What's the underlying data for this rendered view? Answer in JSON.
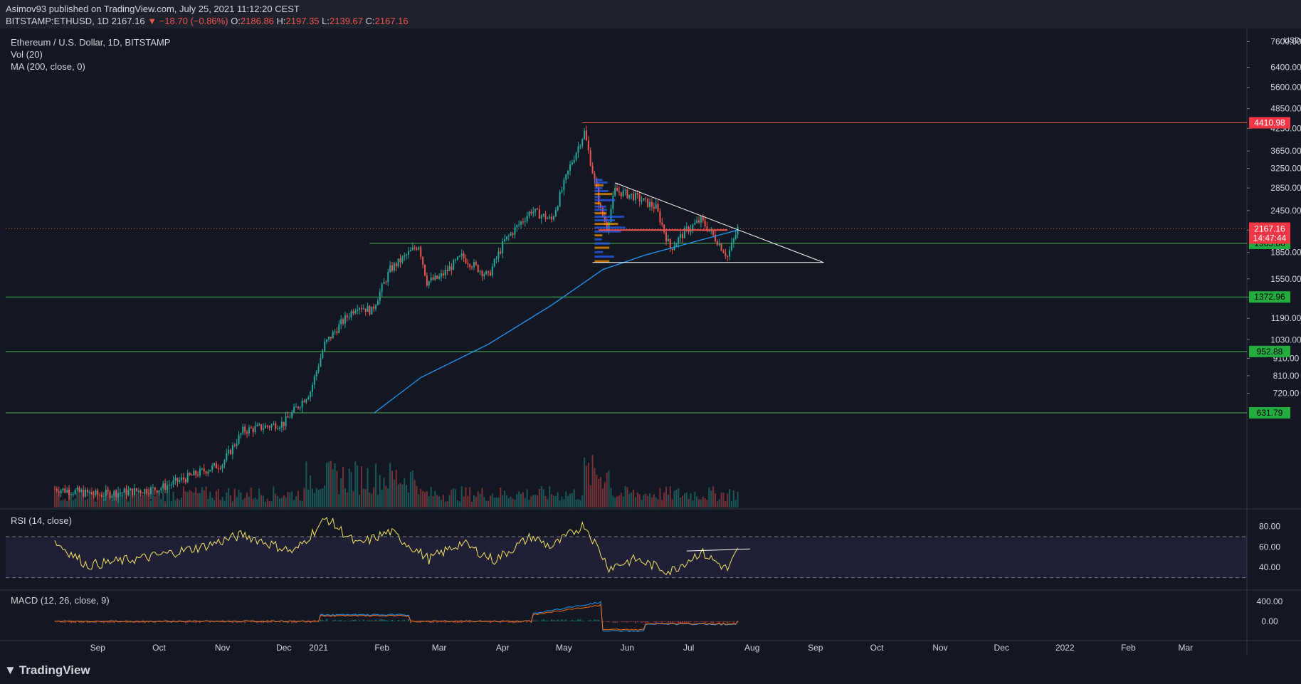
{
  "header": {
    "publisher_line": "Asimov93 published on TradingView.com, July 25, 2021 11:12:20 CEST",
    "symbol": "BITSTAMP:ETHUSD, 1D",
    "last": "2167.16",
    "change_arrow": "▼",
    "change": "−18.70 (−0.86%)",
    "o_label": "O:",
    "o": "2186.86",
    "h_label": "H:",
    "h": "2197.35",
    "l_label": "L:",
    "l": "2139.67",
    "c_label": "C:",
    "c": "2167.16"
  },
  "legend": {
    "main": "Ethereum / U.S. Dollar, 1D, BITSTAMP",
    "vol": "Vol (20)",
    "ma": "MA (200, close, 0)",
    "rsi": "RSI (14, close)",
    "macd": "MACD (12, 26, close, 9)"
  },
  "brand": "TradingView",
  "colors": {
    "background": "#131722",
    "up": "#26a69a",
    "down": "#ef5350",
    "ma": "#2196f3",
    "rsi": "#f5e663",
    "level_green": "#4caf50",
    "level_red": "#ef5350",
    "trendline": "#ffffff"
  },
  "price_tags": {
    "currency": "USD",
    "last": "2167.16",
    "countdown": "14:47:44",
    "levels": [
      "4410.98",
      "1965.86",
      "1372.96",
      "952.88",
      "631.79"
    ]
  },
  "chart_data": [
    {
      "type": "candlestick",
      "title": "Ethereum / U.S. Dollar, 1D, BITSTAMP",
      "y_scale": "log",
      "y_ticks": [
        720,
        810,
        910,
        1030,
        1190,
        1372,
        1550,
        1850,
        2150,
        2450,
        2850,
        3250,
        3650,
        4250,
        4850,
        5600,
        6400,
        7600
      ],
      "y_tick_labels": [
        "720.00",
        "810.00",
        "910.00",
        "1030.00",
        "1190.00",
        "",
        "1550.00",
        "1850.00",
        "",
        "2450.00",
        "2850.00",
        "3250.00",
        "3650.00",
        "4250.00",
        "4850.00",
        "5600.00",
        "6400.00",
        "7600.00"
      ],
      "x_labels": [
        "Sep",
        "Oct",
        "Nov",
        "Dec",
        "2021",
        "Feb",
        "Mar",
        "Apr",
        "May",
        "Jun",
        "Jul",
        "Aug",
        "Sep",
        "Oct",
        "Nov",
        "Dec",
        "2022",
        "Feb",
        "Mar"
      ],
      "close_points": [
        [
          "2020-08-25",
          380
        ],
        [
          "2020-09-15",
          365
        ],
        [
          "2020-10-15",
          380
        ],
        [
          "2020-11-15",
          450
        ],
        [
          "2020-11-25",
          560
        ],
        [
          "2020-12-15",
          590
        ],
        [
          "2020-12-28",
          730
        ],
        [
          "2021-01-04",
          1000
        ],
        [
          "2021-01-12",
          1150
        ],
        [
          "2021-01-20",
          1300
        ],
        [
          "2021-01-27",
          1250
        ],
        [
          "2021-02-05",
          1650
        ],
        [
          "2021-02-19",
          1950
        ],
        [
          "2021-02-23",
          1520
        ],
        [
          "2021-03-01",
          1560
        ],
        [
          "2021-03-12",
          1800
        ],
        [
          "2021-03-25",
          1580
        ],
        [
          "2021-04-02",
          2000
        ],
        [
          "2021-04-15",
          2450
        ],
        [
          "2021-04-25",
          2300
        ],
        [
          "2021-05-04",
          3300
        ],
        [
          "2021-05-11",
          4150
        ],
        [
          "2021-05-19",
          2450
        ],
        [
          "2021-05-22",
          2200
        ],
        [
          "2021-05-26",
          2800
        ],
        [
          "2021-06-04",
          2700
        ],
        [
          "2021-06-15",
          2500
        ],
        [
          "2021-06-22",
          1900
        ],
        [
          "2021-06-30",
          2150
        ],
        [
          "2021-07-07",
          2300
        ],
        [
          "2021-07-15",
          2000
        ],
        [
          "2021-07-20",
          1800
        ],
        [
          "2021-07-25",
          2167
        ]
      ],
      "ma200_points": [
        [
          "2021-01-28",
          630
        ],
        [
          "2021-02-20",
          800
        ],
        [
          "2021-03-25",
          1000
        ],
        [
          "2021-04-25",
          1300
        ],
        [
          "2021-05-20",
          1650
        ],
        [
          "2021-06-10",
          1820
        ],
        [
          "2021-06-30",
          1960
        ],
        [
          "2021-07-25",
          2150
        ]
      ],
      "horizontal_levels": [
        4410.98,
        1965.86,
        1372.96,
        952.88,
        631.79
      ],
      "triangle": {
        "apex_top": [
          "2021-05-26",
          2950
        ],
        "apex_right": [
          "2021-09-05",
          1730
        ],
        "base_left": [
          "2021-05-15",
          1730
        ],
        "base_right": [
          "2021-09-05",
          1730
        ]
      },
      "last_price": 2167.16
    },
    {
      "type": "line",
      "title": "RSI (14, close)",
      "y_ticks": [
        40,
        60,
        80
      ],
      "y_tick_labels": [
        "40.00",
        "60.00",
        "80.00"
      ],
      "bands": [
        30,
        70
      ],
      "points": [
        [
          "2020-08-25",
          65
        ],
        [
          "2020-09-10",
          42
        ],
        [
          "2020-10-10",
          50
        ],
        [
          "2020-11-05",
          60
        ],
        [
          "2020-11-25",
          72
        ],
        [
          "2020-12-20",
          55
        ],
        [
          "2021-01-05",
          88
        ],
        [
          "2021-01-20",
          62
        ],
        [
          "2021-02-05",
          75
        ],
        [
          "2021-02-24",
          48
        ],
        [
          "2021-03-12",
          64
        ],
        [
          "2021-03-28",
          47
        ],
        [
          "2021-04-15",
          70
        ],
        [
          "2021-04-25",
          60
        ],
        [
          "2021-05-11",
          82
        ],
        [
          "2021-05-23",
          40
        ],
        [
          "2021-06-05",
          48
        ],
        [
          "2021-06-22",
          36
        ],
        [
          "2021-07-07",
          55
        ],
        [
          "2021-07-20",
          38
        ],
        [
          "2021-07-25",
          56
        ]
      ]
    },
    {
      "type": "line",
      "title": "MACD (12, 26, close, 9)",
      "y_ticks": [
        0,
        400
      ],
      "y_tick_labels": [
        "0.00",
        "400.00"
      ]
    }
  ]
}
